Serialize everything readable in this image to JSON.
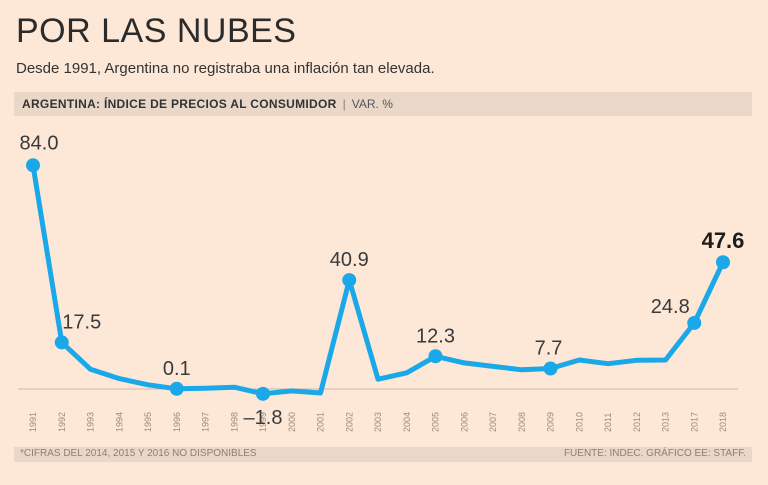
{
  "header": {
    "title": "POR LAS NUBES",
    "subtitle": "Desde 1991, Argentina no registraba una inflación tan elevada.",
    "chart_label": "ARGENTINA: ÍNDICE DE PRECIOS AL CONSUMIDOR",
    "separator": "|",
    "unit": "VAR. %"
  },
  "footer": {
    "note": "*CIFRAS DEL 2014, 2015 Y 2016 NO DISPONIBLES",
    "source": "FUENTE: INDEC. GRÁFICO EE: STAFF."
  },
  "colors": {
    "line": "#1aa8e8",
    "background": "#fde8d7",
    "band": "#e9d7c8",
    "zero_line": "#c9b8aa"
  },
  "chart_data": {
    "type": "line",
    "title": "ARGENTINA: ÍNDICE DE PRECIOS AL CONSUMIDOR",
    "ylabel": "VAR. %",
    "xlabel": "",
    "categories": [
      "1991",
      "1992",
      "1993",
      "1994",
      "1995",
      "1996",
      "1997",
      "1998",
      "1999",
      "2000",
      "2001",
      "2002",
      "2003",
      "2004",
      "2005",
      "2006",
      "2007",
      "2008",
      "2009",
      "2010",
      "2011",
      "2012",
      "2013",
      "2017",
      "2018"
    ],
    "values": [
      84.0,
      17.5,
      7.4,
      3.9,
      1.6,
      0.1,
      0.3,
      0.7,
      -1.8,
      -0.7,
      -1.5,
      40.9,
      3.7,
      6.1,
      12.3,
      9.8,
      8.5,
      7.2,
      7.7,
      10.9,
      9.5,
      10.8,
      10.9,
      24.8,
      47.6
    ],
    "ylim": [
      -6,
      98
    ],
    "grid": false,
    "highlighted_points": [
      {
        "index": 0,
        "label": "84.0",
        "bold": false
      },
      {
        "index": 1,
        "label": "17.5",
        "bold": false
      },
      {
        "index": 5,
        "label": "0.1",
        "bold": false
      },
      {
        "index": 8,
        "label": "–1.8",
        "bold": false
      },
      {
        "index": 11,
        "label": "40.9",
        "bold": false
      },
      {
        "index": 14,
        "label": "12.3",
        "bold": false
      },
      {
        "index": 18,
        "label": "7.7",
        "bold": false
      },
      {
        "index": 23,
        "label": "24.8",
        "bold": false
      },
      {
        "index": 24,
        "label": "47.6",
        "bold": true
      }
    ]
  }
}
